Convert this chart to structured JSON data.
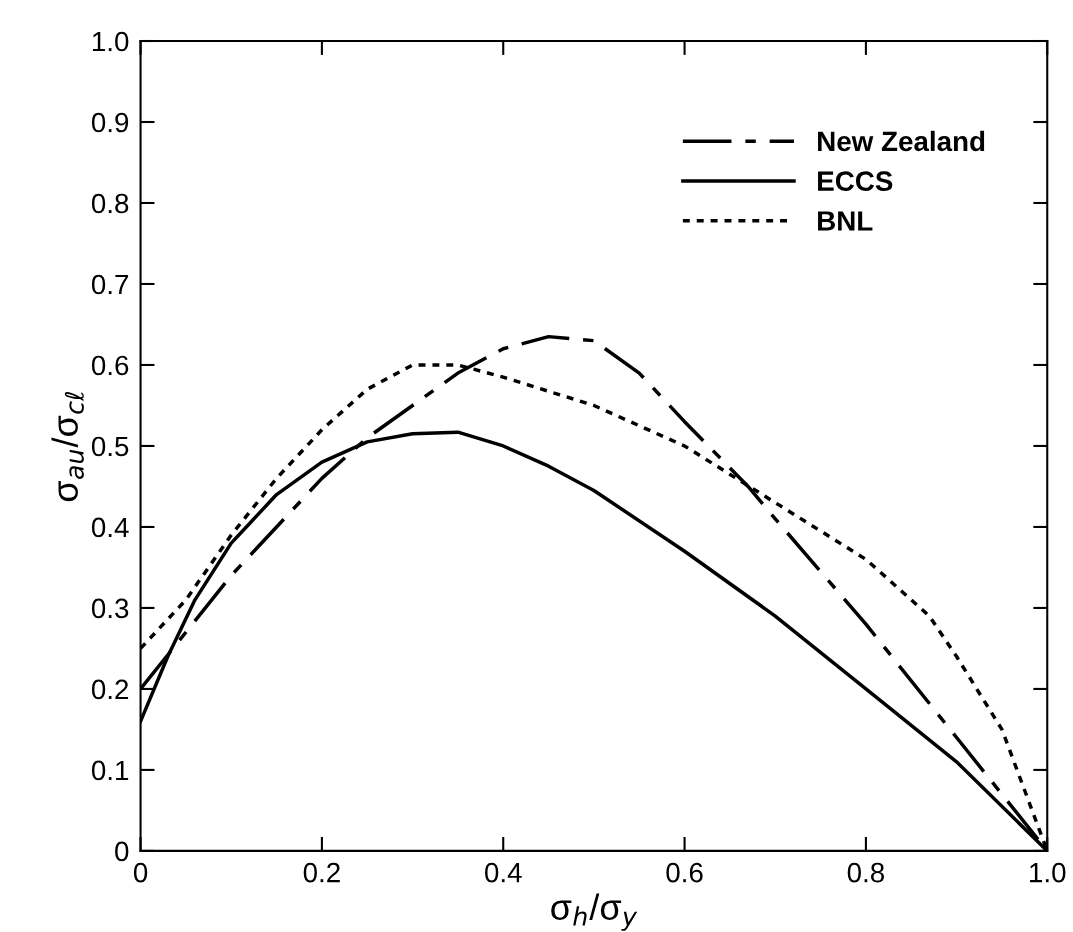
{
  "chart_data": {
    "type": "line",
    "xlabel": "σ$_{h}$/σ$_{y}$",
    "ylabel": "σ$_{au}$/σ$_{cℓ}$",
    "xlim": [
      0,
      1.0
    ],
    "ylim": [
      0,
      1.0
    ],
    "xticks": [
      0,
      {
        "value": 0.2,
        "label": "0.2"
      },
      {
        "value": 0.4,
        "label": "0.4"
      },
      {
        "value": 0.6,
        "label": "0.6"
      },
      {
        "value": 0.8,
        "label": "0.8"
      },
      {
        "value": 1.0,
        "label": "1.0"
      }
    ],
    "yticks": [
      0,
      0.1,
      0.2,
      0.3,
      0.4,
      0.5,
      0.6,
      0.7,
      0.8,
      0.9,
      {
        "value": 1.0,
        "label": "1.0"
      }
    ],
    "legend": "top right",
    "grid": false,
    "marker": "none",
    "series": [
      {
        "name": "New Zealand",
        "color": "#000000",
        "line_style": "dashdot",
        "x": [
          0,
          0.05,
          0.1,
          0.15,
          0.2,
          0.25,
          0.3,
          0.35,
          0.4,
          0.45,
          0.5,
          0.55,
          0.6,
          0.67,
          0.7,
          0.8,
          0.9,
          1.0
        ],
        "values": [
          0.2,
          0.27,
          0.34,
          0.4,
          0.46,
          0.51,
          0.55,
          0.59,
          0.62,
          0.635,
          0.63,
          0.59,
          0.53,
          0.45,
          0.41,
          0.28,
          0.14,
          0.0
        ]
      },
      {
        "name": "ECCS",
        "color": "#000000",
        "line_style": "solid",
        "x": [
          0,
          0.03,
          0.06,
          0.1,
          0.15,
          0.2,
          0.25,
          0.3,
          0.35,
          0.4,
          0.45,
          0.5,
          0.6,
          0.7,
          0.8,
          0.9,
          1.0
        ],
        "values": [
          0.16,
          0.24,
          0.31,
          0.38,
          0.44,
          0.48,
          0.505,
          0.515,
          0.517,
          0.5,
          0.475,
          0.445,
          0.37,
          0.29,
          0.2,
          0.11,
          0.0
        ]
      },
      {
        "name": "BNL",
        "color": "#000000",
        "line_style": "dotted",
        "x": [
          0,
          0.05,
          0.1,
          0.15,
          0.2,
          0.25,
          0.3,
          0.35,
          0.4,
          0.5,
          0.6,
          0.7,
          0.8,
          0.87,
          0.9,
          0.95,
          1.0
        ],
        "values": [
          0.25,
          0.31,
          0.39,
          0.46,
          0.52,
          0.57,
          0.6,
          0.6,
          0.585,
          0.55,
          0.5,
          0.43,
          0.36,
          0.29,
          0.24,
          0.15,
          0.0
        ]
      }
    ]
  }
}
